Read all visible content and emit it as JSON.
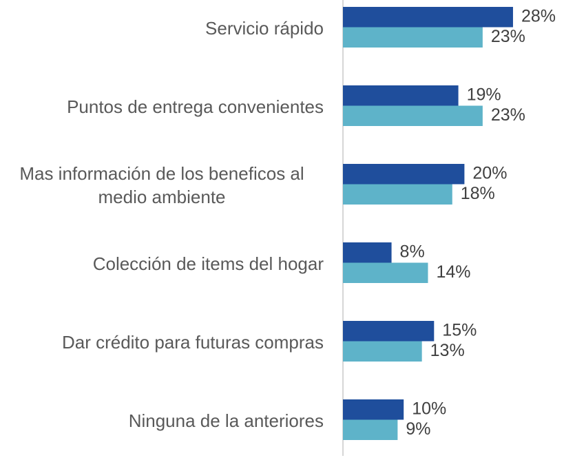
{
  "chart_data": {
    "type": "bar",
    "orientation": "horizontal",
    "categories": [
      "Servicio rápido",
      "Puntos de entrega convenientes",
      "Mas información de los beneficos al medio ambiente",
      "Colección de items del hogar",
      "Dar crédito para futuras compras",
      "Ninguna de la anteriores"
    ],
    "series": [
      {
        "color": "#1f4e9c",
        "values": [
          28,
          19,
          20,
          8,
          15,
          10
        ],
        "value_labels": [
          "28%",
          "19%",
          "20%",
          "8%",
          "15%",
          "10%"
        ]
      },
      {
        "color": "#5eb3c9",
        "values": [
          23,
          23,
          18,
          14,
          13,
          9
        ],
        "value_labels": [
          "23%",
          "23%",
          "18%",
          "14%",
          "13%",
          "9%"
        ]
      }
    ]
  }
}
